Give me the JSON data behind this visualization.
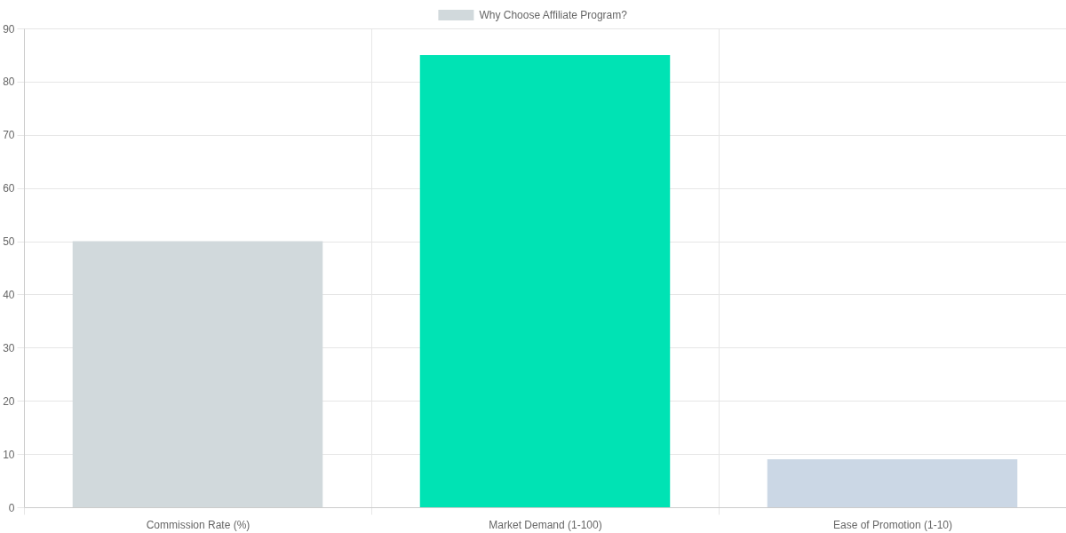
{
  "chart_data": {
    "type": "bar",
    "categories": [
      "Commission Rate (%)",
      "Market Demand (1-100)",
      "Ease of Promotion (1-10)"
    ],
    "series": [
      {
        "name": "Why Choose Affiliate Program?",
        "colors": [
          "#d1d9dc",
          "#00e3b4",
          "#cbd7e5"
        ],
        "values": [
          50,
          85,
          9
        ]
      }
    ],
    "ylim": [
      0,
      90
    ],
    "yticks": [
      0,
      10,
      20,
      30,
      40,
      50,
      60,
      70,
      80,
      90
    ],
    "grid": true,
    "legend": "top"
  }
}
